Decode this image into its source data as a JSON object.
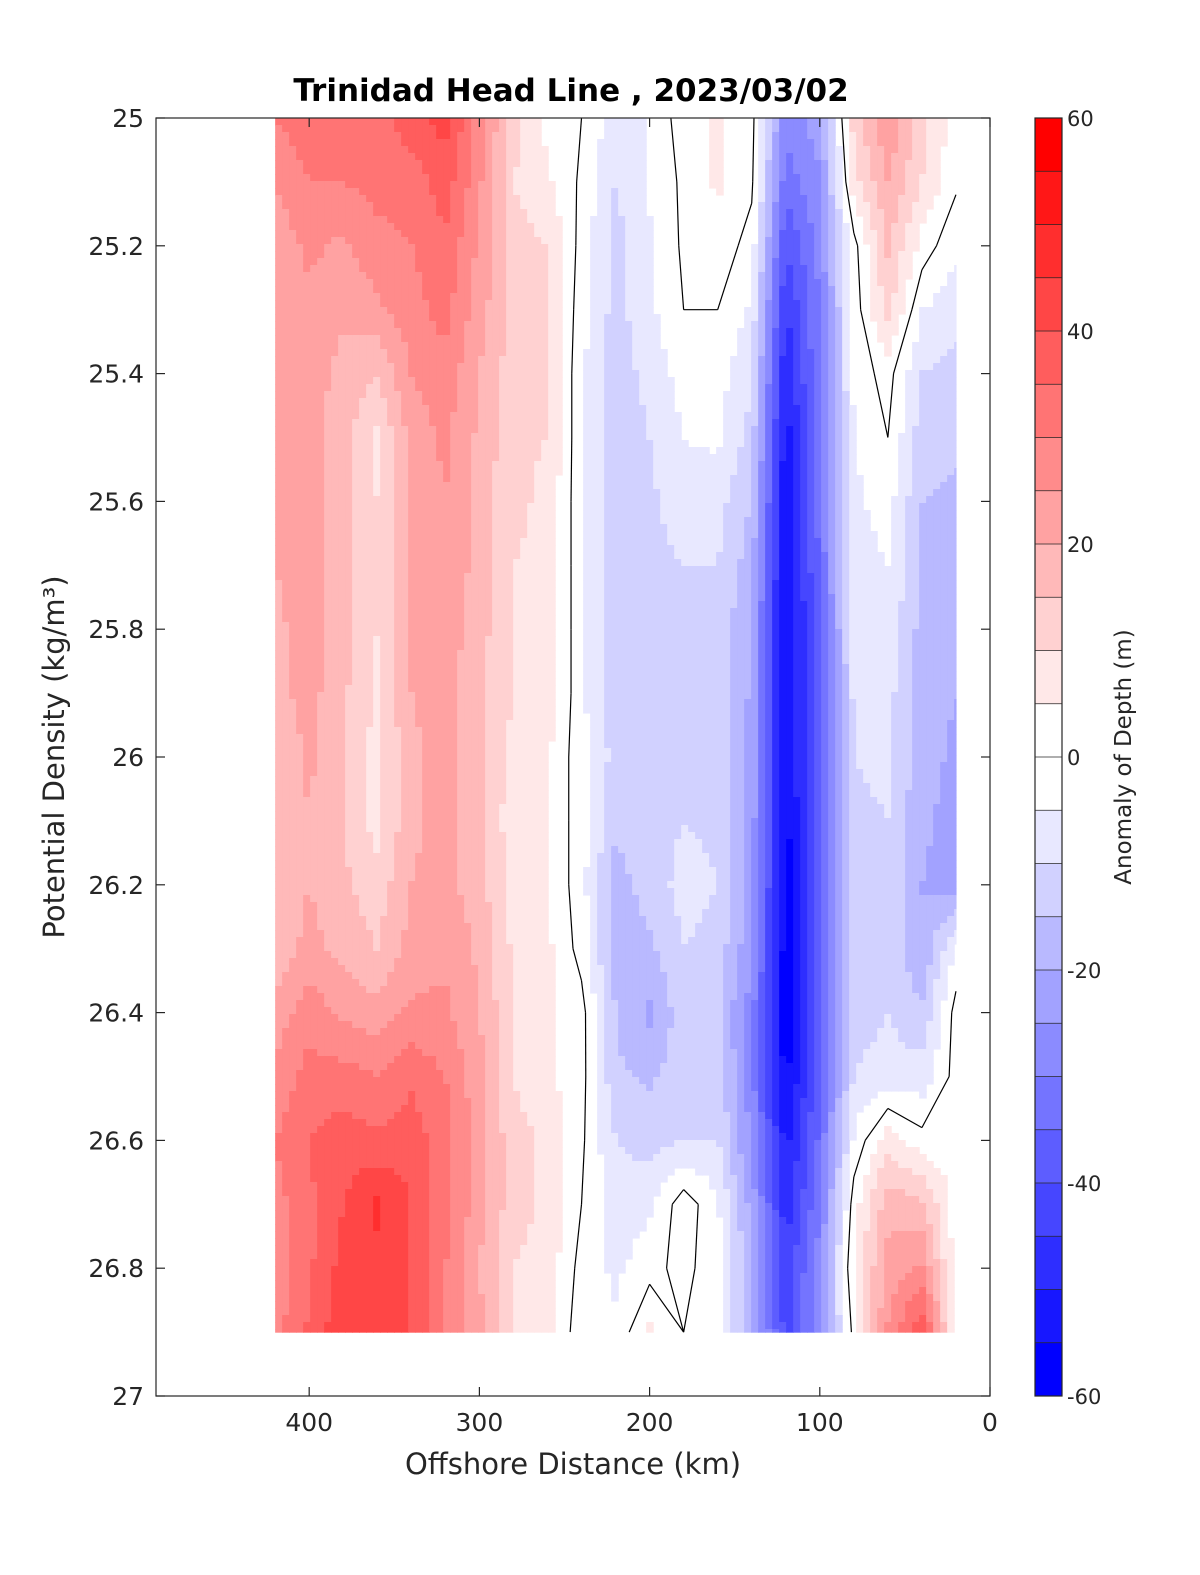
{
  "chart_data": {
    "type": "contour",
    "title": "Trinidad Head Line , 2023/03/02",
    "xlabel": "Offshore Distance (km)",
    "ylabel": "Potential Density (kg/m³)",
    "x_reversed": true,
    "y_reversed": true,
    "xlim": [
      490,
      0
    ],
    "ylim": [
      25,
      27
    ],
    "x_ticks": [
      400,
      300,
      200,
      100,
      0
    ],
    "x_tick_labels": [
      "400",
      "300",
      "200",
      "100",
      "0"
    ],
    "y_ticks": [
      25,
      25.2,
      25.4,
      25.6,
      25.8,
      26,
      26.2,
      26.4,
      26.6,
      26.8,
      27
    ],
    "y_tick_labels": [
      "25",
      "25.2",
      "25.4",
      "25.6",
      "25.8",
      "26",
      "26.2",
      "26.4",
      "26.6",
      "26.8",
      "27"
    ],
    "colorbar": {
      "label": "Anomaly of Depth (m)",
      "range": [
        -60,
        60
      ],
      "level_step": 5,
      "ticks": [
        60,
        40,
        20,
        0,
        -20,
        -40,
        -60
      ],
      "tick_labels": [
        "60",
        "40",
        "20",
        "0",
        "-20",
        "-40",
        "-60"
      ],
      "colormap": "blue-white-red",
      "negative_color": "#0000ff",
      "positive_color": "#ff0000"
    },
    "zero_contour_color": "#000000",
    "data_extent": {
      "x": [
        20,
        420
      ],
      "y": [
        25,
        26.9
      ]
    },
    "x": [
      420,
      400,
      380,
      360,
      340,
      320,
      300,
      280,
      260,
      240,
      220,
      200,
      180,
      160,
      140,
      120,
      100,
      80,
      60,
      40,
      20
    ],
    "y": [
      25.0,
      25.1,
      25.2,
      25.3,
      25.4,
      25.5,
      25.6,
      25.7,
      25.8,
      25.9,
      26.0,
      26.1,
      26.2,
      26.3,
      26.4,
      26.5,
      26.6,
      26.7,
      26.8,
      26.9
    ],
    "z": [
      [
        30,
        34,
        35,
        33,
        38,
        42,
        28,
        12,
        3,
        0,
        -8,
        -5,
        3,
        6,
        2,
        -28,
        -22,
        12,
        25,
        12,
        2
      ],
      [
        25,
        30,
        30,
        32,
        32,
        38,
        26,
        10,
        6,
        -1,
        -10,
        -4,
        1,
        6,
        1,
        -33,
        -26,
        8,
        20,
        10,
        1
      ],
      [
        22,
        26,
        24,
        28,
        30,
        34,
        24,
        12,
        10,
        -2,
        -12,
        -6,
        1,
        3,
        -2,
        -40,
        -28,
        -2,
        16,
        3,
        -4
      ],
      [
        21,
        24,
        21,
        24,
        28,
        32,
        22,
        14,
        10,
        -3,
        -12,
        -6,
        0,
        0,
        -6,
        -46,
        -30,
        -3,
        12,
        -5,
        -8
      ],
      [
        20,
        23,
        18,
        15,
        25,
        28,
        20,
        12,
        10,
        -4,
        -13,
        -8,
        -3,
        -3,
        -9,
        -50,
        -30,
        -3,
        2,
        -10,
        -12
      ],
      [
        20,
        22,
        17,
        9,
        22,
        26,
        19,
        11,
        10,
        -4,
        -14,
        -10,
        -5,
        -4,
        -12,
        -53,
        -32,
        -5,
        0,
        -13,
        -14
      ],
      [
        20,
        22,
        17,
        10,
        22,
        25,
        18,
        11,
        9,
        -4,
        -14,
        -11,
        -7,
        -8,
        -15,
        -55,
        -33,
        -6,
        -3,
        -15,
        -16
      ],
      [
        20,
        22,
        17,
        10,
        21,
        24,
        18,
        10,
        9,
        -4,
        -14,
        -12,
        -10,
        -10,
        -18,
        -56,
        -34,
        -7,
        -5,
        -16,
        -18
      ],
      [
        19,
        22,
        17,
        10,
        21,
        23,
        17,
        10,
        9,
        -4,
        -14,
        -13,
        -11,
        -12,
        -20,
        -57,
        -35,
        -8,
        -6,
        -17,
        -19
      ],
      [
        18,
        22,
        16,
        9,
        20,
        22,
        16,
        10,
        9,
        -4,
        -13,
        -13,
        -11,
        -12,
        -21,
        -56,
        -36,
        -9,
        -8,
        -18,
        -20
      ],
      [
        16,
        21,
        15,
        8,
        19,
        22,
        16,
        8,
        5,
        -3,
        -12,
        -12,
        -10,
        -11,
        -22,
        -55,
        -36,
        -10,
        -9,
        -18,
        -21
      ],
      [
        15,
        20,
        15,
        8,
        19,
        22,
        16,
        7,
        5,
        -3,
        -14,
        -12,
        -10,
        -11,
        -22,
        -57,
        -37,
        -11,
        -10,
        -19,
        -22
      ],
      [
        15,
        20,
        16,
        12,
        20,
        22,
        17,
        8,
        5,
        -3,
        -17,
        -13,
        -8,
        -10,
        -22,
        -58,
        -38,
        -12,
        -11,
        -20,
        -22
      ],
      [
        16,
        22,
        18,
        15,
        22,
        24,
        19,
        9,
        6,
        -2,
        -18,
        -16,
        -10,
        -12,
        -24,
        -58,
        -38,
        -12,
        -11,
        -20,
        -4
      ],
      [
        22,
        28,
        24,
        22,
        26,
        26,
        20,
        10,
        6,
        2,
        -15,
        -21,
        -12,
        -14,
        -28,
        -59,
        -38,
        -12,
        -10,
        -14,
        2
      ],
      [
        26,
        32,
        32,
        30,
        34,
        30,
        22,
        10,
        6,
        2,
        -14,
        -16,
        -12,
        -12,
        -28,
        -57,
        -36,
        -10,
        -8,
        -8,
        2
      ],
      [
        30,
        35,
        38,
        36,
        38,
        32,
        22,
        12,
        9,
        1,
        -10,
        -12,
        -10,
        -10,
        -26,
        -52,
        -34,
        -4,
        8,
        2,
        2
      ],
      [
        28,
        34,
        40,
        46,
        40,
        32,
        22,
        12,
        9,
        0,
        -8,
        -6,
        3,
        -4,
        -22,
        -48,
        -31,
        3,
        18,
        16,
        2
      ],
      [
        26,
        34,
        42,
        44,
        40,
        30,
        20,
        10,
        8,
        -2,
        -6,
        -2,
        2,
        -4,
        -18,
        -44,
        -27,
        6,
        22,
        26,
        2
      ],
      [
        28,
        36,
        44,
        44,
        40,
        30,
        22,
        10,
        8,
        -4,
        -4,
        6,
        0,
        -4,
        -18,
        -42,
        -26,
        2,
        26,
        40,
        2
      ]
    ]
  }
}
